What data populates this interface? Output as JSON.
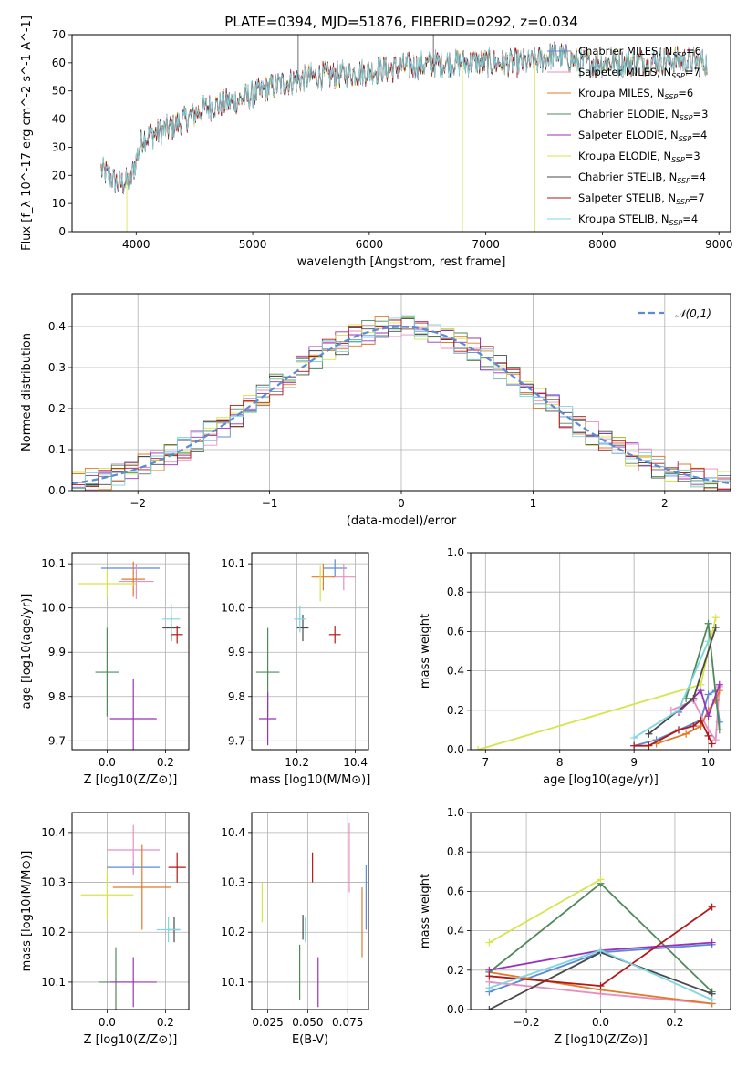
{
  "figure": {
    "title": "PLATE=0394, MJD=51876, FIBERID=0292, z=0.034"
  },
  "legend_entries": [
    {
      "label": "Chabrier MILES, N",
      "sub": "SSP",
      "suffix": "=6",
      "color": "#5b8bd6"
    },
    {
      "label": "Salpeter MILES, N",
      "sub": "SSP",
      "suffix": "=7",
      "color": "#e88fc2"
    },
    {
      "label": "Kroupa MILES, N",
      "sub": "SSP",
      "suffix": "=6",
      "color": "#e07b2a"
    },
    {
      "label": "Chabrier ELODIE, N",
      "sub": "SSP",
      "suffix": "=3",
      "color": "#4f8a5a"
    },
    {
      "label": "Salpeter ELODIE, N",
      "sub": "SSP",
      "suffix": "=4",
      "color": "#9932b8"
    },
    {
      "label": "Kroupa ELODIE, N",
      "sub": "SSP",
      "suffix": "=3",
      "color": "#d7e44a"
    },
    {
      "label": "Chabrier STELIB, N",
      "sub": "SSP",
      "suffix": "=4",
      "color": "#4a4a4a"
    },
    {
      "label": "Salpeter STELIB, N",
      "sub": "SSP",
      "suffix": "=7",
      "color": "#b21818"
    },
    {
      "label": "Kroupa STELIB, N",
      "sub": "SSP",
      "suffix": "=4",
      "color": "#7dd6e0"
    }
  ],
  "chart_data": [
    {
      "id": "spectrum",
      "type": "line",
      "title": "PLATE=0394, MJD=51876, FIBERID=0292, z=0.034",
      "xlabel": "wavelength [Angstrom, rest frame]",
      "ylabel": "Flux [f_λ 10^-17 erg cm^-2 s^-1 A^-1]",
      "xlim": [
        3450,
        9100
      ],
      "ylim": [
        0,
        70
      ],
      "xticks": [
        4000,
        5000,
        6000,
        7000,
        8000,
        9000
      ],
      "yticks": [
        0,
        10,
        20,
        30,
        40,
        50,
        60,
        70
      ],
      "continuum_anchors": [
        [
          3700,
          22
        ],
        [
          3850,
          17
        ],
        [
          3950,
          18
        ],
        [
          4050,
          33
        ],
        [
          4300,
          37
        ],
        [
          4600,
          44
        ],
        [
          4900,
          47
        ],
        [
          5200,
          52
        ],
        [
          5500,
          55
        ],
        [
          5800,
          56
        ],
        [
          6200,
          58
        ],
        [
          6600,
          60
        ],
        [
          7000,
          60
        ],
        [
          7400,
          60
        ],
        [
          7600,
          63
        ],
        [
          7800,
          60
        ],
        [
          8200,
          60
        ],
        [
          8600,
          61
        ],
        [
          8900,
          60
        ]
      ],
      "legend_placement": "right",
      "grid": false
    },
    {
      "id": "residuals",
      "type": "histogram",
      "xlabel": "(data-model)/error",
      "ylabel": "Normed distribution",
      "xlim": [
        -2.5,
        2.5
      ],
      "ylim": [
        0,
        0.48
      ],
      "xticks": [
        -2,
        -1,
        0,
        1,
        2
      ],
      "yticks": [
        0.0,
        0.1,
        0.2,
        0.3,
        0.4
      ],
      "bin_width": 0.1,
      "reference_curve_label": "𝒩(0,1)",
      "reference_color": "#5b8bd6",
      "legend_placement": "top-right",
      "grid": true
    },
    {
      "id": "age_vs_Z",
      "type": "scatter",
      "xlabel": "Z [log10(Z/Z⊙)]",
      "ylabel": "age [log10(age/yr)]",
      "xlim": [
        -0.12,
        0.28
      ],
      "ylim": [
        9.68,
        10.125
      ],
      "xticks": [
        0.0,
        0.2
      ],
      "yticks": [
        9.7,
        9.8,
        9.9,
        10.0,
        10.1
      ],
      "points": [
        {
          "x": 0.08,
          "y": 10.09,
          "xerr": 0.1,
          "yerr": 0.0
        },
        {
          "x": 0.1,
          "y": 10.06,
          "xerr": 0.06,
          "yerr": 0.04
        },
        {
          "x": 0.09,
          "y": 10.065,
          "xerr": 0.04,
          "yerr": 0.04
        },
        {
          "x": 0.0,
          "y": 9.855,
          "xerr": 0.04,
          "yerr": 0.1
        },
        {
          "x": 0.09,
          "y": 9.75,
          "xerr": 0.08,
          "yerr": 0.09
        },
        {
          "x": 0.0,
          "y": 10.055,
          "xerr": 0.1,
          "yerr": 0.03
        },
        {
          "x": 0.22,
          "y": 9.955,
          "xerr": 0.03,
          "yerr": 0.03
        },
        {
          "x": 0.24,
          "y": 9.94,
          "xerr": 0.02,
          "yerr": 0.02
        },
        {
          "x": 0.22,
          "y": 9.975,
          "xerr": 0.03,
          "yerr": 0.035
        }
      ],
      "grid": true
    },
    {
      "id": "age_vs_mass",
      "type": "scatter",
      "xlabel": "mass [log10(M/M⊙)]",
      "ylabel": "",
      "xlim": [
        10.045,
        10.445
      ],
      "ylim": [
        9.68,
        10.125
      ],
      "xticks": [
        10.2,
        10.4
      ],
      "yticks": [
        9.7,
        9.8,
        9.9,
        10.0,
        10.1
      ],
      "points": [
        {
          "x": 10.33,
          "y": 10.09,
          "xerr": 0.04,
          "yerr": 0.02
        },
        {
          "x": 10.36,
          "y": 10.07,
          "xerr": 0.04,
          "yerr": 0.03
        },
        {
          "x": 10.29,
          "y": 10.07,
          "xerr": 0.04,
          "yerr": 0.03
        },
        {
          "x": 10.1,
          "y": 9.855,
          "xerr": 0.04,
          "yerr": 0.1
        },
        {
          "x": 10.1,
          "y": 9.75,
          "xerr": 0.03,
          "yerr": 0.06
        },
        {
          "x": 10.28,
          "y": 10.055,
          "xerr": 0.0,
          "yerr": 0.04
        },
        {
          "x": 10.22,
          "y": 9.955,
          "xerr": 0.02,
          "yerr": 0.03
        },
        {
          "x": 10.33,
          "y": 9.94,
          "xerr": 0.02,
          "yerr": 0.02
        },
        {
          "x": 10.21,
          "y": 9.975,
          "xerr": 0.02,
          "yerr": 0.03
        }
      ],
      "grid": true
    },
    {
      "id": "weight_vs_age",
      "type": "line",
      "xlabel": "age [log10(age/yr)]",
      "ylabel": "mass weight",
      "xlim": [
        6.8,
        10.3
      ],
      "ylim": [
        0,
        1.0
      ],
      "xticks": [
        7,
        8,
        9,
        10
      ],
      "yticks": [
        0.0,
        0.2,
        0.4,
        0.6,
        0.8,
        1.0
      ],
      "series": [
        {
          "x": [
            9.0,
            9.3,
            9.6,
            9.9,
            10.0,
            10.1,
            10.15
          ],
          "y": [
            0.02,
            0.05,
            0.1,
            0.15,
            0.28,
            0.3,
            0.14
          ]
        },
        {
          "x": [
            9.5,
            9.8,
            10.0,
            10.1,
            10.15
          ],
          "y": [
            0.2,
            0.25,
            0.1,
            0.05,
            0.32
          ]
        },
        {
          "x": [
            9.3,
            9.7,
            9.9,
            10.0,
            10.1,
            10.15
          ],
          "y": [
            0.03,
            0.08,
            0.12,
            0.2,
            0.25,
            0.3
          ]
        },
        {
          "x": [
            9.7,
            10.0,
            10.15
          ],
          "y": [
            0.26,
            0.64,
            0.1
          ]
        },
        {
          "x": [
            9.6,
            9.9,
            10.0,
            10.15
          ],
          "y": [
            0.19,
            0.3,
            0.17,
            0.33
          ]
        },
        {
          "x": [
            6.9,
            9.9,
            10.1
          ],
          "y": [
            0.0,
            0.33,
            0.67
          ]
        },
        {
          "x": [
            9.2,
            9.8,
            10.1
          ],
          "y": [
            0.08,
            0.26,
            0.62
          ]
        },
        {
          "x": [
            9.0,
            9.2,
            9.6,
            9.8,
            9.9,
            10.0,
            10.05
          ],
          "y": [
            0.02,
            0.02,
            0.1,
            0.12,
            0.15,
            0.07,
            0.03
          ]
        },
        {
          "x": [
            9.0,
            9.6,
            10.0
          ],
          "y": [
            0.06,
            0.2,
            0.55
          ]
        }
      ],
      "grid": true
    },
    {
      "id": "mass_vs_Z",
      "type": "scatter",
      "xlabel": "Z [log10(Z/Z⊙)]",
      "ylabel": "mass [log10(M/M⊙)]",
      "xlim": [
        -0.12,
        0.28
      ],
      "ylim": [
        10.045,
        10.44
      ],
      "xticks": [
        0.0,
        0.2
      ],
      "yticks": [
        10.1,
        10.2,
        10.3,
        10.4
      ],
      "points": [
        {
          "x": 0.09,
          "y": 10.33,
          "xerr": 0.09,
          "yerr": 0.01
        },
        {
          "x": 0.09,
          "y": 10.365,
          "xerr": 0.09,
          "yerr": 0.05
        },
        {
          "x": 0.12,
          "y": 10.29,
          "xerr": 0.1,
          "yerr": 0.085
        },
        {
          "x": 0.03,
          "y": 10.1,
          "xerr": 0.06,
          "yerr": 0.07
        },
        {
          "x": 0.09,
          "y": 10.1,
          "xerr": 0.08,
          "yerr": 0.05
        },
        {
          "x": 0.0,
          "y": 10.275,
          "xerr": 0.09,
          "yerr": 0.05
        },
        {
          "x": 0.23,
          "y": 10.205,
          "xerr": 0.02,
          "yerr": 0.025
        },
        {
          "x": 0.24,
          "y": 10.33,
          "xerr": 0.03,
          "yerr": 0.03
        },
        {
          "x": 0.21,
          "y": 10.205,
          "xerr": 0.04,
          "yerr": 0.025
        }
      ],
      "grid": true
    },
    {
      "id": "mass_vs_ebv",
      "type": "scatter",
      "xlabel": "E(B-V)",
      "ylabel": "",
      "xlim": [
        0.015,
        0.088
      ],
      "ylim": [
        10.045,
        10.44
      ],
      "xticks": [
        0.025,
        0.05,
        0.075
      ],
      "yticks": [
        10.1,
        10.2,
        10.3,
        10.4
      ],
      "points": [
        {
          "x": 0.0865,
          "y": 10.27,
          "xerr": 0,
          "yerr": 0.065
        },
        {
          "x": 0.076,
          "y": 10.35,
          "xerr": 0,
          "yerr": 0.07
        },
        {
          "x": 0.084,
          "y": 10.22,
          "xerr": 0,
          "yerr": 0.07
        },
        {
          "x": 0.045,
          "y": 10.12,
          "xerr": 0,
          "yerr": 0.055
        },
        {
          "x": 0.0565,
          "y": 10.1,
          "xerr": 0,
          "yerr": 0.05
        },
        {
          "x": 0.0215,
          "y": 10.26,
          "xerr": 0,
          "yerr": 0.04
        },
        {
          "x": 0.047,
          "y": 10.21,
          "xerr": 0,
          "yerr": 0.025
        },
        {
          "x": 0.053,
          "y": 10.33,
          "xerr": 0,
          "yerr": 0.03
        },
        {
          "x": 0.0485,
          "y": 10.205,
          "xerr": 0,
          "yerr": 0.025
        }
      ],
      "grid": true
    },
    {
      "id": "weight_vs_Z",
      "type": "line",
      "xlabel": "Z [log10(Z/Z⊙)]",
      "ylabel": "mass weight",
      "xlim": [
        -0.35,
        0.35
      ],
      "ylim": [
        0,
        1.0
      ],
      "xticks": [
        -0.2,
        0.0,
        0.2
      ],
      "yticks": [
        0.0,
        0.2,
        0.4,
        0.6,
        0.8,
        1.0
      ],
      "series": [
        {
          "x": [
            -0.3,
            0.0,
            0.3
          ],
          "y": [
            0.09,
            0.29,
            0.33
          ]
        },
        {
          "x": [
            -0.3,
            0.0,
            0.3
          ],
          "y": [
            0.14,
            0.08,
            0.03
          ]
        },
        {
          "x": [
            -0.3,
            0.0,
            0.3
          ],
          "y": [
            0.19,
            0.1,
            0.03
          ]
        },
        {
          "x": [
            -0.3,
            0.0,
            0.3
          ],
          "y": [
            0.19,
            0.64,
            0.09
          ]
        },
        {
          "x": [
            -0.3,
            0.0,
            0.3
          ],
          "y": [
            0.2,
            0.3,
            0.34
          ]
        },
        {
          "x": [
            -0.3,
            0.0
          ],
          "y": [
            0.34,
            0.66
          ]
        },
        {
          "x": [
            -0.3,
            0.0,
            0.3
          ],
          "y": [
            0.0,
            0.29,
            0.08
          ]
        },
        {
          "x": [
            -0.3,
            0.0,
            0.3
          ],
          "y": [
            0.17,
            0.12,
            0.52
          ]
        },
        {
          "x": [
            -0.3,
            0.0,
            0.3
          ],
          "y": [
            0.11,
            0.3,
            0.05
          ]
        }
      ],
      "grid": true
    }
  ]
}
